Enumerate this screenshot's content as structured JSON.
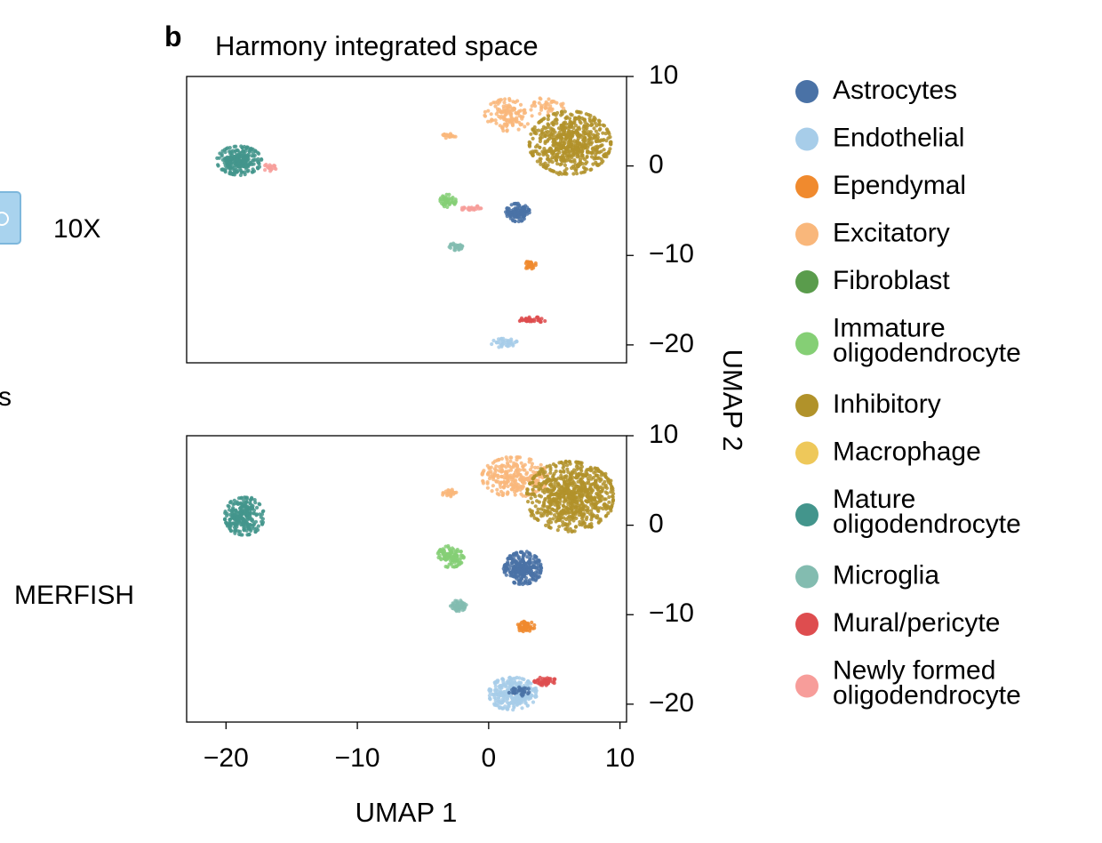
{
  "panel_label": "b",
  "title": "Harmony integrated space",
  "edge_left": {
    "icon": "10x-chip-icon",
    "icon_color": "#a9d3ee",
    "fragment": "s"
  },
  "chart_data": {
    "type": "scatter",
    "title": "Harmony integrated space",
    "xlabel": "UMAP 1",
    "ylabel": "UMAP 2",
    "xlim": [
      -23,
      10.5
    ],
    "ylim": [
      -22,
      10
    ],
    "xticks": [
      -20,
      -10,
      0,
      10
    ],
    "yticks": [
      10,
      0,
      -10,
      -20
    ],
    "xtick_labels": [
      "−20",
      "−10",
      "0",
      "10"
    ],
    "ytick_labels": [
      "10",
      "0",
      "−10",
      "−20"
    ],
    "grid": false,
    "legend_position": "right",
    "legend": [
      {
        "label": "Astrocytes",
        "color": "#4a72a6"
      },
      {
        "label": "Endothelial",
        "color": "#a7cde9"
      },
      {
        "label": "Ependymal",
        "color": "#f08a2e"
      },
      {
        "label": "Excitatory",
        "color": "#f9b77b"
      },
      {
        "label": "Fibroblast",
        "color": "#5a9c4c"
      },
      {
        "label": "Immature\noligodendrocyte",
        "color": "#85cf75"
      },
      {
        "label": "Inhibitory",
        "color": "#b1922a"
      },
      {
        "label": "Macrophage",
        "color": "#eec85a"
      },
      {
        "label": "Mature\noligodendrocyte",
        "color": "#43958c"
      },
      {
        "label": "Microglia",
        "color": "#83bcb0"
      },
      {
        "label": "Mural/pericyte",
        "color": "#de4d4f"
      },
      {
        "label": "Newly formed\noligodendrocyte",
        "color": "#f79d9a"
      }
    ],
    "panels": [
      {
        "row_label": "10X",
        "clusters": [
          {
            "type": "Mature\noligodendrocyte",
            "cx": -19,
            "cy": 0.6,
            "rx": 1.7,
            "ry": 1.6,
            "n": 260
          },
          {
            "type": "Newly formed\noligodendrocyte",
            "cx": -16.6,
            "cy": -0.2,
            "rx": 0.5,
            "ry": 0.5,
            "n": 18
          },
          {
            "type": "Excitatory",
            "cx": 1.5,
            "cy": 5.7,
            "rx": 1.8,
            "ry": 1.8,
            "n": 130
          },
          {
            "type": "Excitatory",
            "cx": 4.5,
            "cy": 6.7,
            "rx": 1.2,
            "ry": 1.0,
            "n": 40
          },
          {
            "type": "Excitatory",
            "cx": -3.0,
            "cy": 3.4,
            "rx": 0.6,
            "ry": 0.3,
            "n": 20
          },
          {
            "type": "Inhibitory",
            "cx": 6.2,
            "cy": 2.6,
            "rx": 3.1,
            "ry": 3.5,
            "n": 620
          },
          {
            "type": "Astrocytes",
            "cx": 2.2,
            "cy": -5.2,
            "rx": 0.9,
            "ry": 1.0,
            "n": 120
          },
          {
            "type": "Immature\noligodendrocyte",
            "cx": -3.1,
            "cy": -3.9,
            "rx": 0.6,
            "ry": 0.7,
            "n": 45
          },
          {
            "type": "Newly formed\noligodendrocyte",
            "cx": -1.3,
            "cy": -4.7,
            "rx": 0.9,
            "ry": 0.3,
            "n": 25
          },
          {
            "type": "Microglia",
            "cx": -2.5,
            "cy": -9.0,
            "rx": 0.5,
            "ry": 0.4,
            "n": 30
          },
          {
            "type": "Ependymal",
            "cx": 3.1,
            "cy": -11.0,
            "rx": 0.5,
            "ry": 0.5,
            "n": 30
          },
          {
            "type": "Mural/pericyte",
            "cx": 3.2,
            "cy": -17.2,
            "rx": 1.2,
            "ry": 0.3,
            "n": 45
          },
          {
            "type": "Endothelial",
            "cx": 1.2,
            "cy": -19.8,
            "rx": 1.0,
            "ry": 0.5,
            "n": 40
          }
        ]
      },
      {
        "row_label": "MERFISH",
        "clusters": [
          {
            "type": "Mature\noligodendrocyte",
            "cx": -18.6,
            "cy": 1.0,
            "rx": 1.5,
            "ry": 2.1,
            "n": 260
          },
          {
            "type": "Excitatory",
            "cx": 2.0,
            "cy": 5.4,
            "rx": 2.5,
            "ry": 2.2,
            "n": 260
          },
          {
            "type": "Excitatory",
            "cx": -3.0,
            "cy": 3.6,
            "rx": 0.6,
            "ry": 0.4,
            "n": 25
          },
          {
            "type": "Inhibitory",
            "cx": 6.2,
            "cy": 3.2,
            "rx": 3.3,
            "ry": 3.9,
            "n": 760
          },
          {
            "type": "Astrocytes",
            "cx": 2.6,
            "cy": -4.8,
            "rx": 1.4,
            "ry": 1.8,
            "n": 280
          },
          {
            "type": "Immature\noligodendrocyte",
            "cx": -2.9,
            "cy": -3.5,
            "rx": 1.0,
            "ry": 1.2,
            "n": 110
          },
          {
            "type": "Microglia",
            "cx": -2.3,
            "cy": -9.0,
            "rx": 0.6,
            "ry": 0.6,
            "n": 60
          },
          {
            "type": "Ependymal",
            "cx": 2.8,
            "cy": -11.3,
            "rx": 0.7,
            "ry": 0.6,
            "n": 60
          },
          {
            "type": "Endothelial",
            "cx": 1.8,
            "cy": -18.8,
            "rx": 1.8,
            "ry": 1.8,
            "n": 300
          },
          {
            "type": "Astrocytes",
            "cx": 2.3,
            "cy": -18.5,
            "rx": 0.8,
            "ry": 0.6,
            "n": 35
          },
          {
            "type": "Mural/pericyte",
            "cx": 4.3,
            "cy": -17.4,
            "rx": 0.8,
            "ry": 0.5,
            "n": 45
          }
        ]
      }
    ]
  }
}
